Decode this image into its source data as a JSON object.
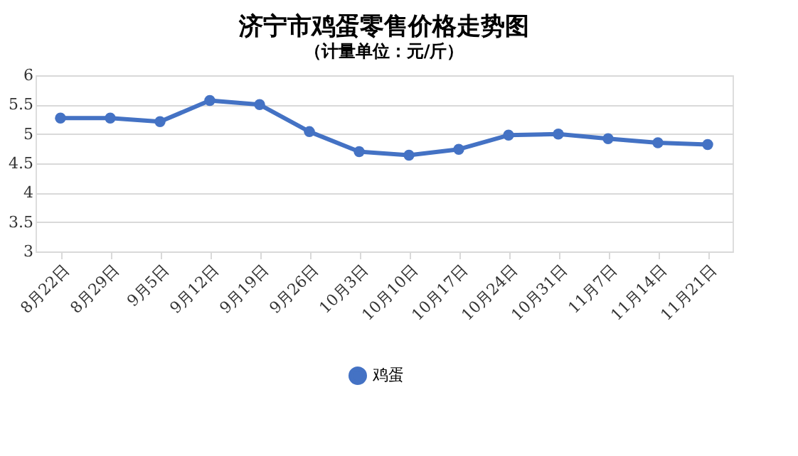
{
  "chart_data": {
    "type": "line",
    "title": "济宁市鸡蛋零售价格走势图",
    "subtitle": "（计量单位：元/斤）",
    "categories": [
      "8月22日",
      "8月29日",
      "9月5日",
      "9月12日",
      "9月19日",
      "9月26日",
      "10月3日",
      "10月10日",
      "10月17日",
      "10月24日",
      "10月31日",
      "11月7日",
      "11月14日",
      "11月21日"
    ],
    "series": [
      {
        "name": "鸡蛋",
        "color": "#4472c4",
        "values": [
          5.27,
          5.27,
          5.21,
          5.57,
          5.5,
          5.04,
          4.7,
          4.64,
          4.74,
          4.98,
          5.0,
          4.92,
          4.85,
          4.82
        ]
      }
    ],
    "ylim": [
      3,
      6
    ],
    "yticks": [
      3,
      3.5,
      4,
      4.5,
      5,
      5.5,
      6
    ],
    "grid": "y",
    "legend": "bottom",
    "marker": "circle",
    "line_style": "solid"
  }
}
